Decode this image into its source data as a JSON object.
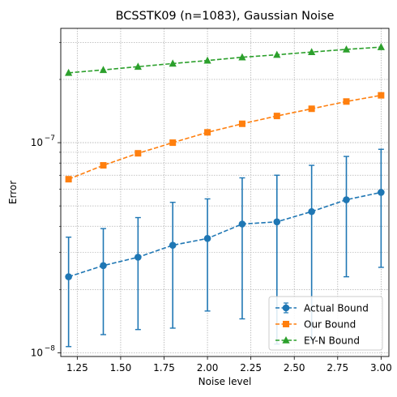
{
  "chart_data": {
    "type": "line",
    "title": "BCSSTK09 (n=1083), Gaussian Noise",
    "xlabel": "Noise level",
    "ylabel": "Error",
    "yscale": "log",
    "xlim": [
      1.155,
      3.045
    ],
    "ylim": [
      9.6e-09,
      3.5e-07
    ],
    "grid": true,
    "legend_position": "bottom-right",
    "x_ticks": [
      {
        "value": 1.25,
        "label": "1.25"
      },
      {
        "value": 1.5,
        "label": "1.50"
      },
      {
        "value": 1.75,
        "label": "1.75"
      },
      {
        "value": 2.0,
        "label": "2.00"
      },
      {
        "value": 2.25,
        "label": "2.25"
      },
      {
        "value": 2.5,
        "label": "2.50"
      },
      {
        "value": 2.75,
        "label": "2.75"
      },
      {
        "value": 3.0,
        "label": "3.00"
      }
    ],
    "y_major_ticks": [
      {
        "value": 1e-08,
        "base": "10",
        "exp": "−8"
      },
      {
        "value": 1e-07,
        "base": "10",
        "exp": "−7"
      }
    ],
    "y_minor_ticks": [
      2e-08,
      3e-08,
      4e-08,
      5e-08,
      6e-08,
      7e-08,
      8e-08,
      9e-08,
      2e-07,
      3e-07
    ],
    "x": [
      1.2,
      1.4,
      1.6,
      1.8,
      2.0,
      2.2,
      2.4,
      2.6,
      2.8,
      3.0
    ],
    "series": [
      {
        "name": "Actual Bound",
        "color": "#1f77b4",
        "marker": "circle",
        "values": [
          2.3e-08,
          2.6e-08,
          2.85e-08,
          3.25e-08,
          3.5e-08,
          4.1e-08,
          4.2e-08,
          4.7e-08,
          5.35e-08,
          5.8e-08
        ],
        "error_low": [
          1.07e-08,
          1.22e-08,
          1.29e-08,
          1.31e-08,
          1.58e-08,
          1.45e-08,
          1.1e-08,
          1.15e-08,
          2.3e-08,
          2.55e-08
        ],
        "error_high": [
          3.55e-08,
          3.9e-08,
          4.4e-08,
          5.2e-08,
          5.4e-08,
          6.8e-08,
          7e-08,
          7.8e-08,
          8.6e-08,
          9.3e-08
        ]
      },
      {
        "name": "Our Bound",
        "color": "#ff7f0e",
        "marker": "square",
        "values": [
          6.7e-08,
          7.8e-08,
          8.9e-08,
          1e-07,
          1.12e-07,
          1.23e-07,
          1.34e-07,
          1.45e-07,
          1.57e-07,
          1.68e-07
        ],
        "error_low": null,
        "error_high": null
      },
      {
        "name": "EY-N Bound",
        "color": "#2ca02c",
        "marker": "triangle",
        "values": [
          2.15e-07,
          2.22e-07,
          2.3e-07,
          2.38e-07,
          2.46e-07,
          2.55e-07,
          2.62e-07,
          2.7e-07,
          2.78e-07,
          2.85e-07
        ],
        "error_low": null,
        "error_high": null
      }
    ]
  }
}
